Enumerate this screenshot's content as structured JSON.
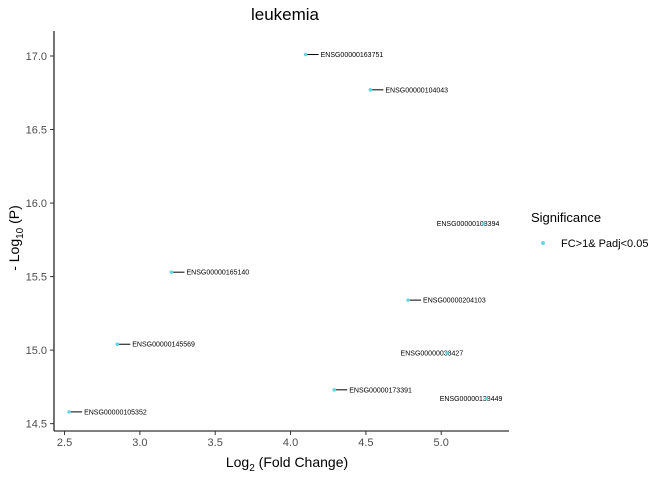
{
  "chart_data": {
    "type": "scatter",
    "title": "leukemia",
    "xlabel": {
      "base": "Log",
      "sub": "2",
      "rest": " (Fold Change)"
    },
    "ylabel": {
      "pre": "- Log",
      "sub": "10",
      "rest": " (P)"
    },
    "xlim": [
      2.43,
      5.45
    ],
    "ylim": [
      14.45,
      17.17
    ],
    "xticks": [
      2.5,
      3.0,
      3.5,
      4.0,
      4.5,
      5.0
    ],
    "yticks": [
      14.5,
      15.0,
      15.5,
      16.0,
      16.5,
      17.0
    ],
    "xtick_labels": [
      "2.5",
      "3.0",
      "3.5",
      "4.0",
      "4.5",
      "5.0"
    ],
    "ytick_labels": [
      "14.5",
      "15.0",
      "15.5",
      "16.0",
      "16.5",
      "17.0"
    ],
    "grid": false,
    "legend": {
      "title": "Significance",
      "position": "right",
      "label": "FC>1& Padj<0.05",
      "color": "#67d6e0"
    },
    "point_color": "#67d6e0",
    "points": [
      {
        "x": 4.1,
        "y": 17.01,
        "label": "ENSG00000163751",
        "side": "right"
      },
      {
        "x": 4.53,
        "y": 16.77,
        "label": "ENSG00000104043",
        "side": "right"
      },
      {
        "x": 5.28,
        "y": 15.86,
        "label": "ENSG00000108394",
        "side": "left"
      },
      {
        "x": 3.21,
        "y": 15.53,
        "label": "ENSG00000165140",
        "side": "right"
      },
      {
        "x": 4.78,
        "y": 15.34,
        "label": "ENSG00000204103",
        "side": "right"
      },
      {
        "x": 2.85,
        "y": 15.04,
        "label": "ENSG00000145569",
        "side": "right"
      },
      {
        "x": 5.04,
        "y": 14.98,
        "label": "ENSG00000038427",
        "side": "left"
      },
      {
        "x": 4.29,
        "y": 14.73,
        "label": "ENSG00000173391",
        "side": "right"
      },
      {
        "x": 5.3,
        "y": 14.67,
        "label": "ENSG00000138449",
        "side": "left"
      },
      {
        "x": 2.53,
        "y": 14.58,
        "label": "ENSG00000105352",
        "side": "right"
      }
    ]
  }
}
